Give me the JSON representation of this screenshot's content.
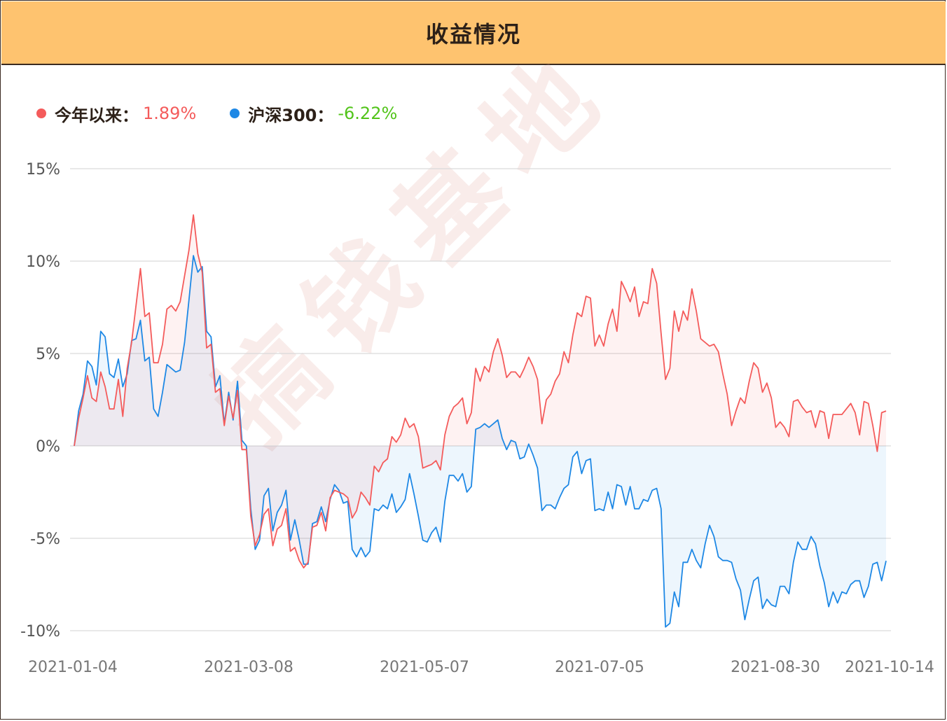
{
  "header": {
    "title": "收益情况"
  },
  "legend": [
    {
      "label": "今年以来：",
      "value": "1.89%",
      "dot_color": "#f45b5b",
      "value_color": "#f45b5b"
    },
    {
      "label": "沪深300：",
      "value": "-6.22%",
      "dot_color": "#1e88e5",
      "value_color": "#52c41a"
    }
  ],
  "watermark": "搞钱基地",
  "chart_data": {
    "type": "area",
    "y_ticks": [
      "15%",
      "10%",
      "5%",
      "0%",
      "-5%",
      "-10%"
    ],
    "y_tick_values": [
      15,
      10,
      5,
      0,
      -5,
      -10
    ],
    "ylim": [
      -10,
      15
    ],
    "x_ticks": [
      "2021-01-04",
      "2021-03-08",
      "2021-05-07",
      "2021-07-05",
      "2021-08-30",
      "2021-10-14"
    ],
    "grid": true,
    "series": [
      {
        "name": "今年以来",
        "color": "#f45b5b",
        "fill": "rgba(244,91,91,0.08)",
        "values": [
          0,
          1.5,
          2.6,
          3.8,
          2.6,
          2.4,
          4.0,
          3.2,
          2.0,
          2.0,
          3.6,
          1.6,
          4.2,
          5.6,
          7.6,
          9.6,
          7.0,
          7.2,
          4.5,
          4.5,
          5.5,
          7.4,
          7.6,
          7.3,
          7.8,
          9.2,
          10.6,
          12.5,
          10.4,
          9.4,
          5.3,
          5.5,
          2.9,
          3.1,
          1.1,
          2.7,
          1.5,
          3.0,
          -0.2,
          -0.2,
          -3.8,
          -5.4,
          -4.8,
          -3.7,
          -3.4,
          -5.4,
          -4.5,
          -4.3,
          -3.4,
          -5.7,
          -5.5,
          -6.2,
          -6.6,
          -6.3,
          -4.4,
          -4.3,
          -3.6,
          -4.6,
          -2.8,
          -2.4,
          -2.5,
          -2.6,
          -2.8,
          -3.9,
          -3.5,
          -2.5,
          -2.8,
          -3.2,
          -1.1,
          -1.4,
          -0.9,
          -0.7,
          0.5,
          0.2,
          0.6,
          1.5,
          1.0,
          1.2,
          0.5,
          -1.2,
          -1.1,
          -1.0,
          -0.8,
          -1.3,
          0.6,
          1.6,
          2.1,
          2.3,
          2.6,
          1.2,
          1.8,
          4.2,
          3.5,
          4.3,
          4.0,
          5.1,
          5.8,
          4.9,
          3.7,
          4.0,
          4.0,
          3.7,
          4.2,
          4.8,
          4.3,
          3.6,
          1.2,
          2.5,
          2.8,
          3.5,
          3.9,
          5.1,
          4.5,
          6.0,
          7.2,
          7.0,
          8.1,
          8.0,
          5.4,
          6.0,
          5.4,
          6.6,
          7.4,
          6.2,
          8.9,
          8.4,
          7.8,
          8.6,
          7.0,
          7.8,
          7.7,
          9.6,
          8.8,
          6.1,
          3.6,
          4.2,
          7.3,
          6.2,
          7.3,
          6.8,
          8.5,
          7.3,
          5.8,
          5.6,
          5.4,
          5.5,
          5.1,
          3.9,
          2.8,
          1.1,
          1.9,
          2.6,
          2.3,
          3.5,
          4.5,
          4.2,
          2.9,
          3.4,
          2.6,
          1.0,
          1.3,
          1.0,
          0.5,
          2.4,
          2.5,
          2.1,
          1.8,
          1.9,
          1.0,
          1.9,
          1.8,
          0.4,
          1.7,
          1.7,
          1.7,
          2.0,
          2.3,
          1.8,
          0.6,
          2.4,
          2.3,
          1.1,
          -0.3,
          1.8,
          1.89
        ]
      },
      {
        "name": "沪深300",
        "color": "#1e88e5",
        "fill": "rgba(30,136,229,0.08)",
        "values": [
          0,
          1.9,
          2.8,
          4.6,
          4.3,
          3.3,
          6.2,
          5.9,
          3.9,
          3.7,
          4.7,
          3.2,
          3.9,
          5.7,
          5.8,
          6.8,
          4.6,
          4.8,
          2.0,
          1.6,
          2.9,
          4.4,
          4.2,
          4.0,
          4.1,
          5.6,
          7.9,
          10.3,
          9.4,
          9.7,
          6.2,
          5.9,
          3.2,
          3.8,
          1.2,
          2.9,
          1.4,
          3.5,
          0.3,
          0.0,
          -3.4,
          -5.6,
          -5.1,
          -2.7,
          -2.3,
          -4.6,
          -3.6,
          -3.2,
          -2.4,
          -5.1,
          -4.0,
          -5.1,
          -6.4,
          -6.4,
          -4.2,
          -4.1,
          -3.3,
          -4.1,
          -2.9,
          -2.1,
          -2.4,
          -3.1,
          -3.0,
          -5.6,
          -6.0,
          -5.5,
          -6.0,
          -5.7,
          -3.4,
          -3.5,
          -3.2,
          -3.4,
          -2.6,
          -3.6,
          -3.3,
          -2.9,
          -1.5,
          -2.6,
          -3.8,
          -5.1,
          -5.2,
          -4.7,
          -4.4,
          -5.2,
          -3.0,
          -1.6,
          -1.6,
          -1.9,
          -1.5,
          -2.5,
          -2.2,
          0.9,
          1.0,
          1.2,
          1.0,
          1.2,
          1.4,
          0.4,
          -0.2,
          0.3,
          0.2,
          -0.7,
          -0.6,
          0.1,
          -0.5,
          -1.2,
          -3.5,
          -3.2,
          -3.2,
          -3.4,
          -2.8,
          -2.3,
          -2.1,
          -0.6,
          -0.3,
          -1.5,
          -0.8,
          -0.7,
          -3.5,
          -3.4,
          -3.5,
          -2.5,
          -3.4,
          -2.1,
          -2.2,
          -3.2,
          -2.2,
          -3.4,
          -3.4,
          -2.9,
          -3.0,
          -2.4,
          -2.3,
          -3.4,
          -9.8,
          -9.6,
          -7.9,
          -8.7,
          -6.3,
          -6.3,
          -5.6,
          -6.2,
          -6.6,
          -5.3,
          -4.3,
          -4.9,
          -6.0,
          -6.2,
          -6.2,
          -6.3,
          -7.2,
          -7.8,
          -9.4,
          -8.3,
          -7.3,
          -7.1,
          -8.8,
          -8.3,
          -8.6,
          -8.7,
          -7.6,
          -7.6,
          -8.0,
          -6.3,
          -5.2,
          -5.6,
          -5.6,
          -4.9,
          -5.3,
          -6.5,
          -7.4,
          -8.7,
          -7.9,
          -8.5,
          -7.9,
          -8.0,
          -7.5,
          -7.3,
          -7.3,
          -8.2,
          -7.6,
          -6.4,
          -6.3,
          -7.3,
          -6.22
        ]
      }
    ]
  }
}
